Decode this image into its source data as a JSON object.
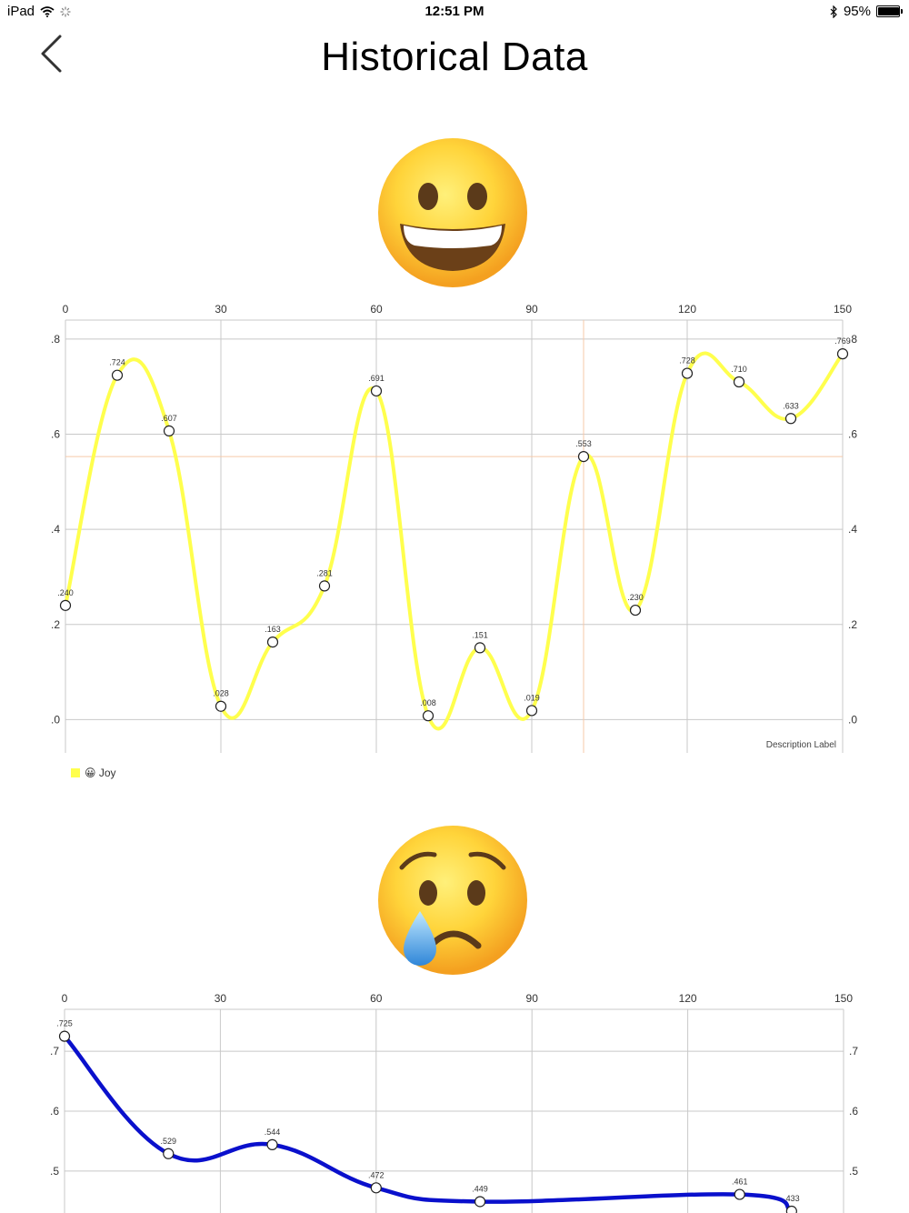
{
  "status_bar": {
    "device": "iPad",
    "time": "12:51 PM",
    "battery": "95%",
    "battery_level": 0.95
  },
  "nav": {
    "title": "Historical Data",
    "back_icon": "chevron-left-icon"
  },
  "emojis": {
    "joy": "grinning-face-icon",
    "sad": "crying-face-icon"
  },
  "colors": {
    "joy_line": "#ffff4d",
    "sad_line": "#0a10cc",
    "grid": "#c8c8c8",
    "highlight": "#f7c9a9"
  },
  "chart_data": [
    {
      "type": "line",
      "x": [
        0,
        10,
        20,
        30,
        40,
        50,
        60,
        70,
        80,
        90,
        100,
        110,
        120,
        130,
        140,
        150
      ],
      "series": [
        {
          "name": "😀 Joy",
          "values": [
            0.24,
            0.724,
            0.607,
            0.028,
            0.163,
            0.281,
            0.691,
            0.008,
            0.151,
            0.019,
            0.553,
            0.23,
            0.728,
            0.71,
            0.633,
            0.769
          ]
        }
      ],
      "data_labels": [
        ".240",
        ".724",
        ".607",
        ".028",
        ".163",
        ".281",
        ".691",
        ".008",
        ".151",
        ".019",
        ".553",
        ".230",
        ".728",
        ".710",
        ".633",
        ".769"
      ],
      "x_ticks": [
        "0",
        "30",
        "60",
        "90",
        "120",
        "150"
      ],
      "y_ticks": [
        ".0",
        ".2",
        ".4",
        ".6",
        ".8"
      ],
      "y_tick_values": [
        0,
        0.2,
        0.4,
        0.6,
        0.8
      ],
      "xlim": [
        0,
        150
      ],
      "ylim": [
        -0.07,
        0.84
      ],
      "description": "Description Label",
      "highlight": {
        "x": 100,
        "y": 0.553
      },
      "grid": true,
      "legend": "bottom-left"
    },
    {
      "type": "line",
      "x": [
        0,
        20,
        40,
        60,
        80,
        130,
        140
      ],
      "series": [
        {
          "values": [
            0.725,
            0.529,
            0.544,
            0.472,
            0.449,
            0.461,
            0.433
          ]
        }
      ],
      "data_labels": [
        ".725",
        ".529",
        ".544",
        ".472",
        ".449",
        ".461",
        ".433"
      ],
      "x_ticks": [
        "0",
        "30",
        "60",
        "90",
        "120",
        "150"
      ],
      "y_ticks": [
        ".5",
        ".6",
        ".7"
      ],
      "y_tick_values": [
        0.5,
        0.6,
        0.7
      ],
      "xlim": [
        0,
        150
      ],
      "ylim": [
        0.43,
        0.77
      ],
      "grid": true
    }
  ]
}
